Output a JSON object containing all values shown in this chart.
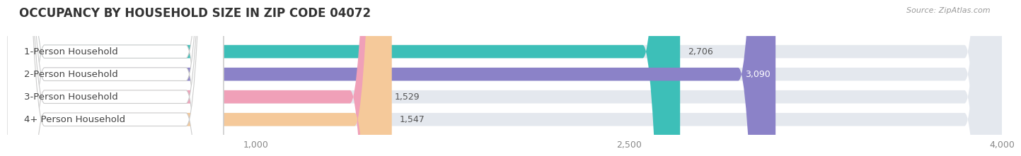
{
  "title": "OCCUPANCY BY HOUSEHOLD SIZE IN ZIP CODE 04072",
  "source": "Source: ZipAtlas.com",
  "categories": [
    "1-Person Household",
    "2-Person Household",
    "3-Person Household",
    "4+ Person Household"
  ],
  "values": [
    2706,
    3090,
    1529,
    1547
  ],
  "bar_colors": [
    "#3dbfb8",
    "#8b82c8",
    "#f0a0b8",
    "#f5c99a"
  ],
  "xlim": [
    0,
    4000
  ],
  "xticks": [
    1000,
    2500,
    4000
  ],
  "background_color": "#ffffff",
  "bar_background_color": "#e4e8ee",
  "title_fontsize": 12,
  "tick_fontsize": 9,
  "label_fontsize": 9.5,
  "value_fontsize": 9
}
